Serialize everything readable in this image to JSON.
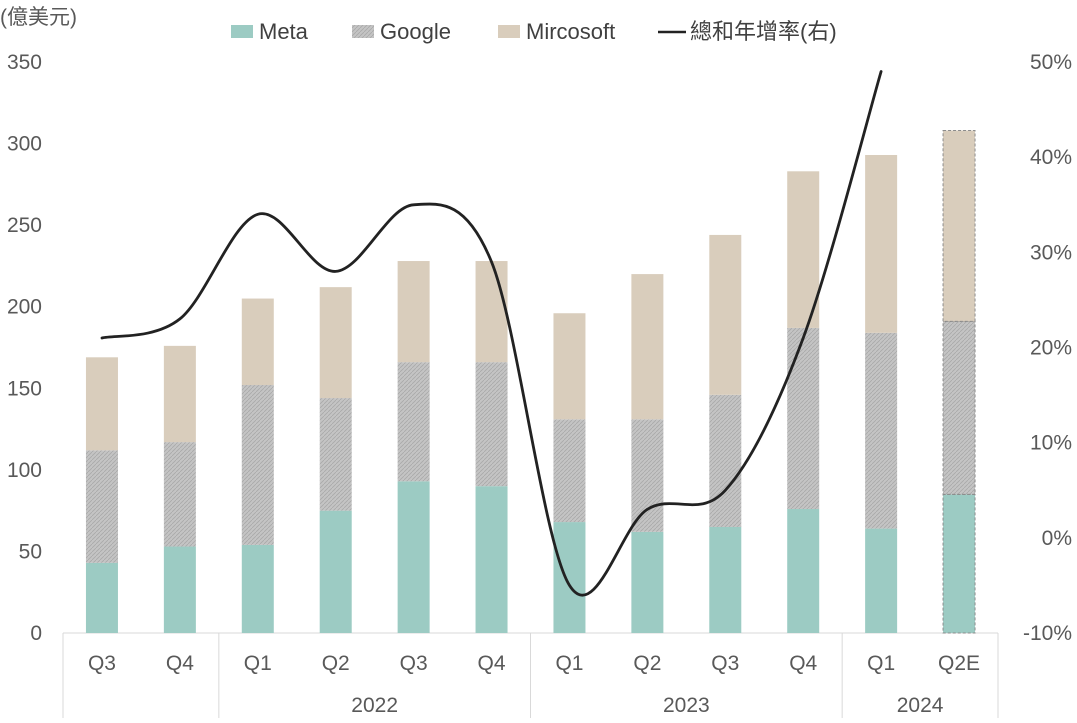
{
  "chart_data": {
    "type": "bar",
    "stacked": true,
    "y_left_unit": "(億美元)",
    "y_left_ticks": [
      0,
      50,
      100,
      150,
      200,
      250,
      300,
      350
    ],
    "y_left_range": [
      0,
      350
    ],
    "y_right_ticks": [
      "-10%",
      "0%",
      "10%",
      "20%",
      "30%",
      "40%",
      "50%"
    ],
    "y_right_range": [
      -10,
      50
    ],
    "categories": [
      "Q3",
      "Q4",
      "Q1",
      "Q2",
      "Q3",
      "Q4",
      "Q1",
      "Q2",
      "Q3",
      "Q4",
      "Q1",
      "Q2E"
    ],
    "year_groups": [
      {
        "label": "",
        "span": 2
      },
      {
        "label": "2022",
        "span": 4
      },
      {
        "label": "2023",
        "span": 4
      },
      {
        "label": "2024",
        "span": 2
      }
    ],
    "series": [
      {
        "name": "Meta",
        "color": "#9ccbc3",
        "values": [
          43,
          53,
          54,
          75,
          93,
          90,
          68,
          62,
          65,
          76,
          64,
          85
        ]
      },
      {
        "name": "Google",
        "color": "#bdbdbd",
        "values": [
          69,
          64,
          98,
          69,
          73,
          76,
          63,
          69,
          81,
          111,
          120,
          106
        ]
      },
      {
        "name": "Mircosoft",
        "color": "#d9cdbc",
        "values": [
          57,
          59,
          53,
          68,
          62,
          62,
          65,
          89,
          98,
          96,
          109,
          117
        ]
      }
    ],
    "estimate_index": 11,
    "line_series": {
      "name": "總和年增率(右)",
      "axis": "right",
      "color": "#222222",
      "values": [
        21,
        23,
        34,
        28,
        35,
        29,
        -5,
        3,
        5,
        21,
        49
      ]
    },
    "legend_position": "top"
  }
}
